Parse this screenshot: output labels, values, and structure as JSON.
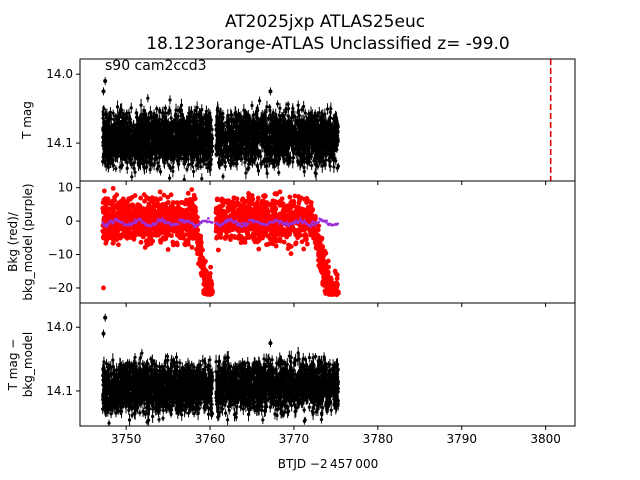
{
  "title_line1": "AT2025jxp  ATLAS25euc",
  "title_line2": "18.123orange-ATLAS Unclassified z= -99.0",
  "annotation": "s90 cam2ccd3",
  "xlabel": "BTJD −2 457 000",
  "chart_data": [
    {
      "type": "scatter",
      "panel": "top",
      "ylabel": "T mag",
      "y_inverted": true,
      "xlim": [
        3744.5,
        3803.5
      ],
      "ylim": [
        14.155,
        13.978
      ],
      "x_ticks": [
        3750,
        3760,
        3770,
        3780,
        3790,
        3800
      ],
      "y_ticks": [
        14.0,
        14.1
      ],
      "y_tick_labels": [
        "14.0",
        "14.1"
      ],
      "vline": {
        "x": 3800.6,
        "color": "#e00000",
        "style": "dashed"
      },
      "series": [
        {
          "color": "#000000",
          "segments": [
            {
              "x_start": 3747.2,
              "x_end": 3760.3,
              "center": 14.095,
              "spread": 0.045
            },
            {
              "x_start": 3760.7,
              "x_end": 3775.3,
              "center": 14.093,
              "spread": 0.045
            }
          ],
          "outliers": [
            {
              "x": 3747.5,
              "y": 14.01
            },
            {
              "x": 3747.3,
              "y": 14.025
            },
            {
              "x": 3767.2,
              "y": 14.025
            }
          ]
        }
      ]
    },
    {
      "type": "scatter",
      "panel": "middle",
      "ylabel": "Bkg (red)/\nbkg_model (purple)",
      "xlim": [
        3744.5,
        3803.5
      ],
      "ylim": [
        -24.5,
        12
      ],
      "x_ticks": [
        3750,
        3760,
        3770,
        3780,
        3790,
        3800
      ],
      "y_ticks": [
        10,
        0,
        -10,
        -20
      ],
      "y_tick_labels": [
        "10",
        "0",
        "−10",
        "−20"
      ],
      "series": [
        {
          "color": "#ff0000",
          "segments": [
            {
              "x_start": 3747.2,
              "x_end": 3760.3,
              "center": 0.5,
              "spread": 8
            },
            {
              "x_start": 3760.7,
              "x_end": 3775.3,
              "center": 0.5,
              "spread": 8
            }
          ],
          "dips": [
            {
              "x_start": 3758.2,
              "x_end": 3760.3,
              "low": -22
            },
            {
              "x_start": 3772.2,
              "x_end": 3775.3,
              "low": -22
            }
          ],
          "outliers": [
            {
              "x": 3747.3,
              "y": -20
            }
          ]
        },
        {
          "color": "#9b30d9",
          "level": -0.5
        }
      ]
    },
    {
      "type": "scatter",
      "panel": "bottom",
      "ylabel": "T mag −\nbkg_model",
      "y_inverted": true,
      "xlim": [
        3744.5,
        3803.5
      ],
      "ylim": [
        14.155,
        13.962
      ],
      "x_ticks": [
        3750,
        3760,
        3770,
        3780,
        3790,
        3800
      ],
      "x_tick_labels": [
        "3750",
        "3760",
        "3770",
        "3780",
        "3790",
        "3800"
      ],
      "y_ticks": [
        14.0,
        14.1
      ],
      "y_tick_labels": [
        "14.0",
        "14.1"
      ],
      "series": [
        {
          "color": "#000000",
          "segments": [
            {
              "x_start": 3747.2,
              "x_end": 3760.3,
              "center": 14.095,
              "spread": 0.045
            },
            {
              "x_start": 3760.7,
              "x_end": 3775.3,
              "center": 14.093,
              "spread": 0.045
            }
          ],
          "outliers": [
            {
              "x": 3747.5,
              "y": 13.985
            },
            {
              "x": 3747.3,
              "y": 14.01
            },
            {
              "x": 3767.2,
              "y": 14.025
            }
          ]
        }
      ]
    }
  ]
}
